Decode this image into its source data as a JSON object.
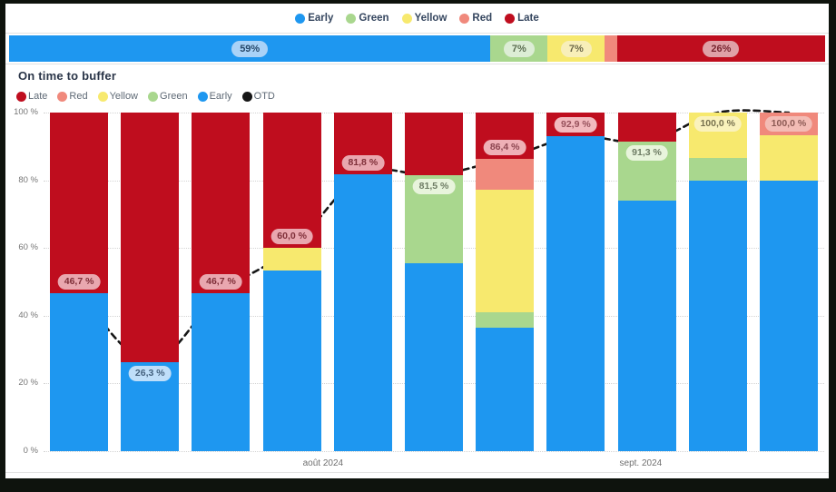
{
  "page": {
    "frame_color": "#0E130D",
    "card_color": "#FFFFFF"
  },
  "series_colors": {
    "Early": "#1E97F0",
    "Green": "#A9D78E",
    "Yellow": "#F7E96E",
    "Red": "#F0897C",
    "Late": "#BF0D1E",
    "OTD": "#161616"
  },
  "top_legend": [
    {
      "label": "Early",
      "color": "#1E97F0"
    },
    {
      "label": "Green",
      "color": "#A9D78E"
    },
    {
      "label": "Yellow",
      "color": "#F7E96E"
    },
    {
      "label": "Red",
      "color": "#F0897C"
    },
    {
      "label": "Late",
      "color": "#BF0D1E"
    }
  ],
  "summary_bar": {
    "segments": [
      {
        "name": "Early",
        "value": 59.0,
        "label": "59%",
        "label_bg": "#A9D2F7",
        "label_text": "#27496B"
      },
      {
        "name": "Green",
        "value": 7.0,
        "label": "7%",
        "label_bg": "#DCEDD5",
        "label_text": "#5C6E52"
      },
      {
        "name": "Yellow",
        "value": 7.0,
        "label": "7%",
        "label_bg": "#F8EFB9",
        "label_text": "#6E6A4B"
      },
      {
        "name": "Red",
        "value": 1.5,
        "label": "",
        "label_bg": "",
        "label_text": ""
      },
      {
        "name": "Late",
        "value": 25.5,
        "label": "26%",
        "label_bg": "#DFA0A7",
        "label_text": "#772530"
      }
    ]
  },
  "section": {
    "title": "On time to buffer"
  },
  "chart_legend": [
    {
      "label": "Late",
      "color": "#BF0D1E"
    },
    {
      "label": "Red",
      "color": "#F0897C"
    },
    {
      "label": "Yellow",
      "color": "#F7E96E"
    },
    {
      "label": "Green",
      "color": "#A9D78E"
    },
    {
      "label": "Early",
      "color": "#1E97F0"
    },
    {
      "label": "OTD",
      "color": "#161616"
    }
  ],
  "chart_data": {
    "type": "bar",
    "subtype": "100%-stacked-columns-with-dashed-OTD-line",
    "title": "On time to buffer",
    "xlabel": "",
    "ylabel": "",
    "ylim": [
      0,
      100
    ],
    "grid": "dotted-horizontal",
    "y_ticks": [
      {
        "label": "100 %",
        "value": 100
      },
      {
        "label": "80 %",
        "value": 80
      },
      {
        "label": "60 %",
        "value": 60
      },
      {
        "label": "40 %",
        "value": 40
      },
      {
        "label": "20 %",
        "value": 20
      },
      {
        "label": "0 %",
        "value": 0
      }
    ],
    "x_group_labels": [
      {
        "text": "août 2024",
        "pos": 0.358
      },
      {
        "text": "sept. 2024",
        "pos": 0.765
      }
    ],
    "bars": [
      {
        "segments": [
          {
            "name": "Early",
            "value": 46.7
          },
          {
            "name": "Late",
            "value": 53.3
          }
        ],
        "otd": 46.7,
        "label": "46,7 %",
        "label_side": "above",
        "label_bg": "#E9A7AF",
        "label_text": "#7E2E38"
      },
      {
        "segments": [
          {
            "name": "Early",
            "value": 26.3
          },
          {
            "name": "Late",
            "value": 73.7
          }
        ],
        "otd": 26.3,
        "label": "26,3 %",
        "label_side": "below",
        "label_bg": "#BFDEF9",
        "label_text": "#44617E"
      },
      {
        "segments": [
          {
            "name": "Early",
            "value": 46.7
          },
          {
            "name": "Late",
            "value": 53.3
          }
        ],
        "otd": 46.7,
        "label": "46,7 %",
        "label_side": "above",
        "label_bg": "#E9A7AF",
        "label_text": "#7E2E38"
      },
      {
        "segments": [
          {
            "name": "Early",
            "value": 53.3
          },
          {
            "name": "Yellow",
            "value": 6.7
          },
          {
            "name": "Late",
            "value": 40.0
          }
        ],
        "otd": 60.0,
        "label": "60,0 %",
        "label_side": "above",
        "label_bg": "#E9A7AF",
        "label_text": "#7E2E38"
      },
      {
        "segments": [
          {
            "name": "Early",
            "value": 81.8
          },
          {
            "name": "Late",
            "value": 18.2
          }
        ],
        "otd": 81.8,
        "label": "81,8 %",
        "label_side": "above",
        "label_bg": "#E9A7AF",
        "label_text": "#7E2E38"
      },
      {
        "segments": [
          {
            "name": "Early",
            "value": 55.6
          },
          {
            "name": "Green",
            "value": 25.9
          },
          {
            "name": "Late",
            "value": 18.5
          }
        ],
        "otd": 81.5,
        "label": "81,5 %",
        "label_side": "below",
        "label_bg": "#E8F4DC",
        "label_text": "#6E7C64"
      },
      {
        "segments": [
          {
            "name": "Early",
            "value": 36.4
          },
          {
            "name": "Green",
            "value": 4.5
          },
          {
            "name": "Yellow",
            "value": 36.4
          },
          {
            "name": "Red",
            "value": 9.1
          },
          {
            "name": "Late",
            "value": 13.6
          }
        ],
        "otd": 86.4,
        "label": "86,4 %",
        "label_side": "above",
        "label_bg": "#EFB0B6",
        "label_text": "#8C4650"
      },
      {
        "segments": [
          {
            "name": "Early",
            "value": 92.9
          },
          {
            "name": "Late",
            "value": 7.1
          }
        ],
        "otd": 92.9,
        "label": "92,9 %",
        "label_side": "above",
        "label_bg": "#F2B9BE",
        "label_text": "#96505B"
      },
      {
        "segments": [
          {
            "name": "Early",
            "value": 73.9
          },
          {
            "name": "Green",
            "value": 17.4
          },
          {
            "name": "Late",
            "value": 8.7
          }
        ],
        "otd": 91.3,
        "label": "91,3 %",
        "label_side": "below",
        "label_bg": "#E8F4DC",
        "label_text": "#6E7C64"
      },
      {
        "segments": [
          {
            "name": "Early",
            "value": 80.0
          },
          {
            "name": "Green",
            "value": 6.7
          },
          {
            "name": "Yellow",
            "value": 13.3
          }
        ],
        "otd": 100.0,
        "label": "100,0 %",
        "label_side": "below",
        "label_bg": "#FAF2BC",
        "label_text": "#77714E"
      },
      {
        "segments": [
          {
            "name": "Early",
            "value": 80.0
          },
          {
            "name": "Yellow",
            "value": 13.3
          },
          {
            "name": "Red",
            "value": 6.7
          }
        ],
        "otd": 100.0,
        "label": "100,0 %",
        "label_side": "below",
        "label_bg": "#F3BCB5",
        "label_text": "#8C5A54"
      }
    ],
    "otd_series": {
      "name": "OTD",
      "style": "dashed",
      "color": "#161616",
      "values": [
        46.7,
        26.3,
        46.7,
        60.0,
        81.8,
        81.5,
        86.4,
        92.9,
        91.3,
        100.0,
        100.0
      ]
    }
  }
}
